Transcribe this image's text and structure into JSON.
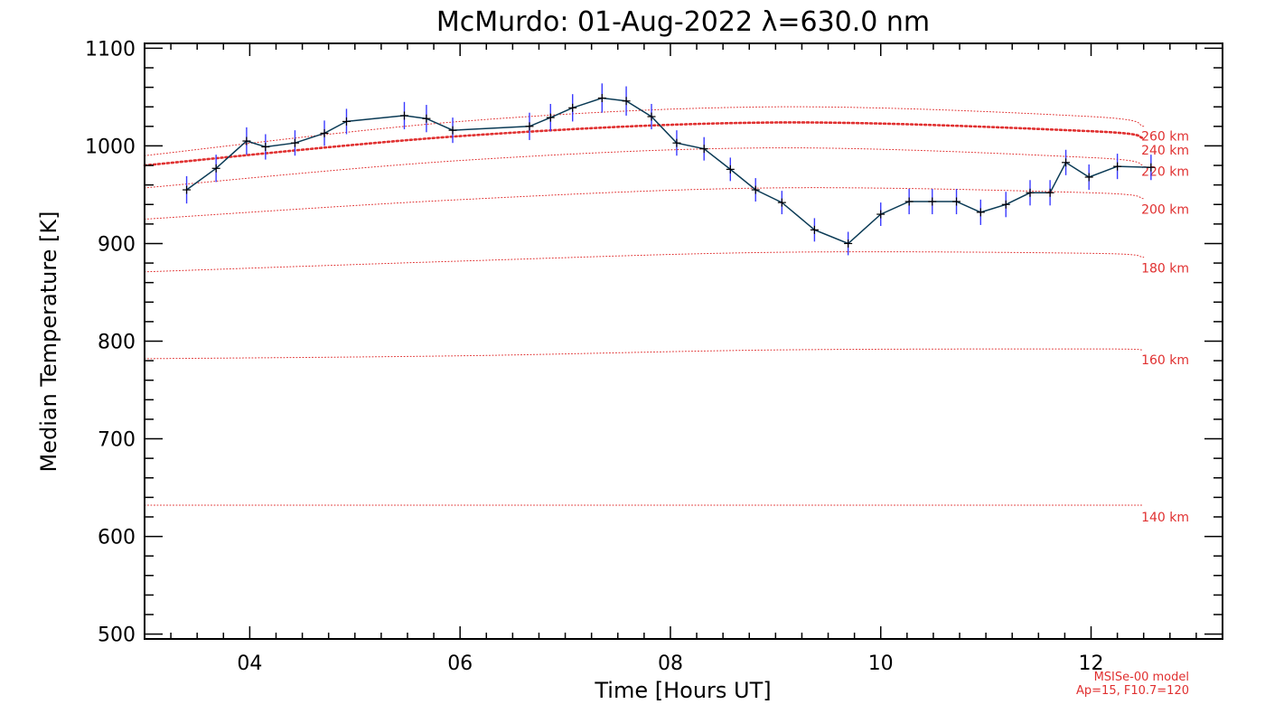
{
  "chart_data": {
    "type": "line",
    "title": "McMurdo: 01-Aug-2022 λ=630.0 nm",
    "xlabel": "Time [Hours UT]",
    "ylabel": "Median Temperature [K]",
    "xlim": [
      3.0,
      13.25
    ],
    "ylim": [
      495,
      1105
    ],
    "x_ticks": [
      4,
      6,
      8,
      10,
      12
    ],
    "x_tick_labels": [
      "04",
      "06",
      "08",
      "10",
      "12"
    ],
    "y_ticks": [
      500,
      600,
      700,
      800,
      900,
      1000,
      1100
    ],
    "y_tick_labels": [
      "500",
      "600",
      "700",
      "800",
      "900",
      "1000",
      "1100"
    ],
    "grid": false,
    "series": [
      {
        "kind": "measured",
        "color": "#0a3a55",
        "error_color": "#3a3aff",
        "x": [
          3.4,
          3.68,
          3.97,
          4.15,
          4.43,
          4.71,
          4.92,
          5.47,
          5.68,
          5.93,
          6.66,
          6.86,
          7.07,
          7.35,
          7.58,
          7.82,
          8.06,
          8.32,
          8.57,
          8.81,
          9.06,
          9.37,
          9.69,
          10.0,
          10.27,
          10.49,
          10.72,
          10.95,
          11.19,
          11.42,
          11.61,
          11.76,
          11.98,
          12.25,
          12.57
        ],
        "y": [
          955,
          977,
          1005,
          999,
          1003,
          1013,
          1025,
          1031,
          1028,
          1016,
          1020,
          1029,
          1039,
          1049,
          1046,
          1030,
          1003,
          997,
          976,
          955,
          942,
          914,
          900,
          930,
          943,
          943,
          943,
          932,
          940,
          952,
          952,
          983,
          968,
          979,
          978
        ],
        "err": [
          14,
          14,
          14,
          13,
          13,
          13,
          13,
          14,
          14,
          13,
          14,
          14,
          14,
          15,
          15,
          13,
          13,
          12,
          12,
          12,
          12,
          12,
          12,
          12,
          13,
          13,
          13,
          13,
          13,
          13,
          13,
          13,
          13,
          13,
          13
        ]
      }
    ],
    "model_curves": [
      {
        "label": "140 km",
        "x": [
          3.0,
          6.0,
          9.0,
          12.0,
          12.5
        ],
        "y": [
          632,
          632,
          632,
          632,
          632
        ],
        "label_y": 620,
        "thick": false
      },
      {
        "label": "160 km",
        "x": [
          3.0,
          6.0,
          9.0,
          12.0,
          12.5
        ],
        "y": [
          782,
          785,
          791,
          792,
          791
        ],
        "label_y": 781,
        "thick": false
      },
      {
        "label": "180 km",
        "x": [
          3.0,
          6.0,
          9.0,
          12.0,
          12.5
        ],
        "y": [
          871,
          882,
          891,
          890,
          886
        ],
        "label_y": 875,
        "thick": false
      },
      {
        "label": "200 km",
        "x": [
          3.0,
          6.0,
          9.0,
          12.0,
          12.5
        ],
        "y": [
          925,
          945,
          957,
          952,
          946
        ],
        "label_y": 935,
        "thick": false
      },
      {
        "label": "220 km",
        "x": [
          3.0,
          6.0,
          9.0,
          12.0,
          12.5
        ],
        "y": [
          957,
          985,
          998,
          988,
          980
        ],
        "label_y": 974,
        "thick": false
      },
      {
        "label": "240 km",
        "x": [
          3.0,
          6.0,
          9.0,
          12.0,
          12.5
        ],
        "y": [
          980,
          1010,
          1024,
          1015,
          1008
        ],
        "label_y": 996,
        "thick": true
      },
      {
        "label": "260 km",
        "x": [
          3.0,
          6.0,
          9.0,
          12.0,
          12.5
        ],
        "y": [
          990,
          1025,
          1040,
          1030,
          1020
        ],
        "label_y": 1010,
        "thick": false
      }
    ],
    "model_color": "#e03030"
  },
  "notes": {
    "model_name": "MSISe-00 model",
    "model_params": "Ap=15, F10.7=120"
  }
}
